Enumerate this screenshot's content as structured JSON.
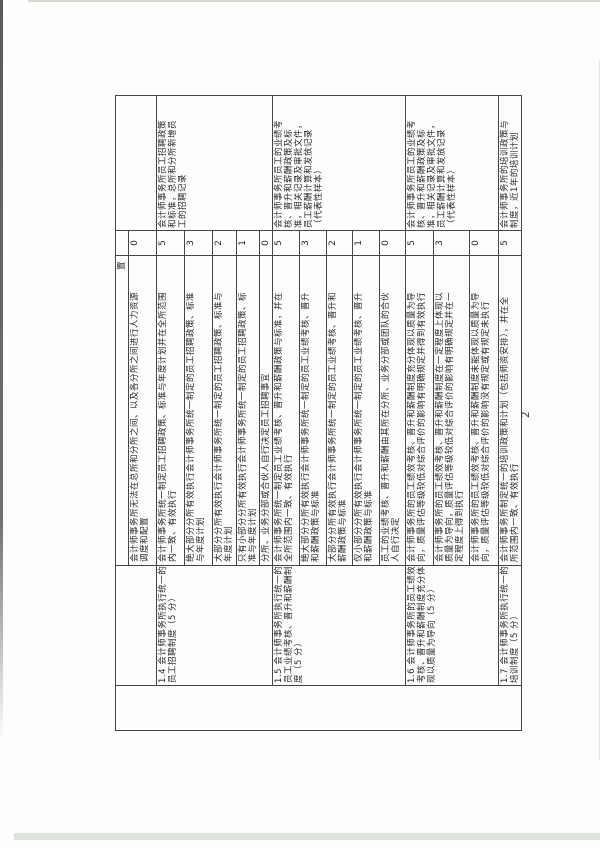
{
  "page": {
    "number": "2"
  },
  "table": {
    "groups": [
      {
        "item": "",
        "evidence": "",
        "rows": [
          {
            "criteria": "置",
            "score": "",
            "tail": true
          },
          {
            "criteria": "会计师事务所无法在总所和分所之间、以及各分所之间进行人力资源\n调度和配置",
            "score": "0"
          }
        ]
      },
      {
        "item": "1.4 会计师事务所执行统一的\n员工招聘制度（5 分）",
        "evidence": "会计师事务所员工招聘政策\n和标准，总所和分所新增员\n工的招聘记录",
        "rows": [
          {
            "criteria": "会计师事务所统一制定员工招聘政策、标准与年度计划并在全所范围\n内一致、有效执行",
            "score": "5"
          },
          {
            "criteria": "绝大部分分所有效执行会计师事务所统一制定的员工招聘政策、标准\n与年度计划",
            "score": "3"
          },
          {
            "criteria": "大部分分所有效执行会计师事务所统一制定的员工招聘政策、标准与\n年度计划",
            "score": "2"
          },
          {
            "criteria": "只有小部分分所有效执行会计师事务所统一制定的员工招聘政策、标\n准与年度计划",
            "score": "1"
          },
          {
            "criteria": "分所、业务分部或合伙人自行决定员工招聘事宜",
            "score": "0"
          }
        ]
      },
      {
        "item": "1.5 会计师事务所执行统一的\n员工业绩考核、晋升和薪酬制\n度（5 分）",
        "evidence": "会计师事务所员工的业绩考\n核、晋升和薪酬政策及标\n准，相关记录及审批文件，\n员工薪酬计算和发放记录\n（代表性样本）",
        "rows": [
          {
            "criteria": "会计师事务所统一制定员工业绩考核、晋升和薪酬政策与标准，并在\n全所范围内一致、有效执行",
            "score": "5"
          },
          {
            "criteria": "绝大部分分所有效执行会计师事务所统一制定的员工业绩考核、晋升\n和薪酬政策与标准",
            "score": "3"
          },
          {
            "criteria": "大部分分所有效执行会计师事务所统一制定的员工业绩考核、晋升和\n薪酬政策与标准",
            "score": "2"
          },
          {
            "criteria": "仅小部分分所有效执行会计师事务所统一制定的员工业绩考核、晋升\n和薪酬政策与标准",
            "score": "1"
          },
          {
            "criteria": "员工的业绩考核、晋升和薪酬由其所在分所、业务分部或团队的合伙\n人自行决定",
            "score": "0"
          }
        ]
      },
      {
        "item": "1.6 会计师事务所的员工绩效\n考核、晋升和薪酬制度充分体\n现以质量为导向（5 分）",
        "evidence": "会计师事务所员工的业绩考\n核、晋升和薪酬政策及标\n准，相关记录及审批文件，\n员工薪酬计算和发放记录\n（代表性样本）",
        "rows": [
          {
            "criteria": "会计师事务所的员工绩效考核、晋升和薪酬制度充分体现以质量为导\n向，质量评估等级较低对综合评价的影响有明确规定并得到有效执行",
            "score": "5"
          },
          {
            "criteria": "会计师事务所的员工绩效考核、晋升和薪酬制度在一定程度上体现以\n质量为导向，质量评估等级较低对综合评价的影响有明确规定并在一\n定程度上得到执行",
            "score": "3"
          },
          {
            "criteria": "会计师事务所的员工绩效考核、晋升和薪酬制度未能体现以质量为导\n向，质量评估等级较低对综合评价的影响没有规定或有规定未执行",
            "score": "0"
          }
        ]
      },
      {
        "item": "1.7 会计师事务所执行统一的\n培训制度（5 分）",
        "evidence": "会计师事务所的培训政策与\n制度，近1年的培训计划",
        "rows": [
          {
            "criteria": "会计师事务所制定统一的培训政策和计划（包括师资安排），并在全\n所范围内一致、有效执行",
            "score": "5"
          }
        ]
      }
    ]
  }
}
